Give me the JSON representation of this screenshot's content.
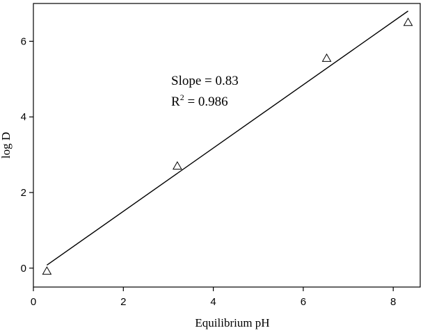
{
  "chart_data": {
    "type": "scatter",
    "xlabel": "Equilibrium pH",
    "ylabel": "log D",
    "xlim": [
      0,
      8.6
    ],
    "ylim": [
      -0.5,
      7.0
    ],
    "xticks": [
      0,
      2,
      4,
      6,
      8
    ],
    "yticks": [
      0,
      2,
      4,
      6
    ],
    "x_tick_labels": [
      "0",
      "2",
      "4",
      "6",
      "8"
    ],
    "y_tick_labels": [
      "0",
      "2",
      "4",
      "6"
    ],
    "grid": false,
    "marker": "open-triangle",
    "points": [
      {
        "x": 0.3,
        "y": -0.08
      },
      {
        "x": 3.2,
        "y": 2.7
      },
      {
        "x": 6.52,
        "y": 5.55
      },
      {
        "x": 8.33,
        "y": 6.5
      }
    ],
    "fit_line": {
      "x": [
        0.3,
        8.33
      ],
      "y": [
        0.08,
        6.8
      ]
    },
    "annotation": {
      "slope_text": "Slope = 0.83",
      "r2_prefix": "R",
      "r2_superscript": "2",
      "r2_suffix": " = 0.986"
    },
    "colors": {
      "ink": "#000000",
      "background": "#ffffff"
    }
  }
}
